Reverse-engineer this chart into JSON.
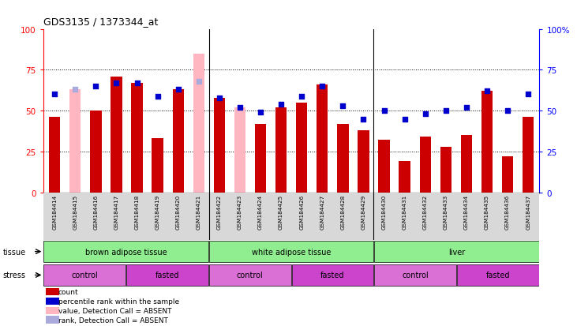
{
  "title": "GDS3135 / 1373344_at",
  "samples": [
    "GSM184414",
    "GSM184415",
    "GSM184416",
    "GSM184417",
    "GSM184418",
    "GSM184419",
    "GSM184420",
    "GSM184421",
    "GSM184422",
    "GSM184423",
    "GSM184424",
    "GSM184425",
    "GSM184426",
    "GSM184427",
    "GSM184428",
    "GSM184429",
    "GSM184430",
    "GSM184431",
    "GSM184432",
    "GSM184433",
    "GSM184434",
    "GSM184435",
    "GSM184436",
    "GSM184437"
  ],
  "count_values": [
    46,
    63,
    50,
    71,
    67,
    33,
    63,
    85,
    58,
    52,
    42,
    52,
    55,
    66,
    42,
    38,
    32,
    19,
    34,
    28,
    35,
    62,
    22,
    46
  ],
  "rank_values": [
    60,
    63,
    65,
    67,
    67,
    59,
    63,
    68,
    58,
    52,
    49,
    54,
    59,
    65,
    53,
    45,
    50,
    45,
    48,
    50,
    52,
    62,
    50,
    60
  ],
  "absent_count": [
    false,
    true,
    false,
    false,
    false,
    false,
    false,
    true,
    false,
    true,
    false,
    false,
    false,
    false,
    false,
    false,
    false,
    false,
    false,
    false,
    false,
    false,
    false,
    false
  ],
  "absent_rank": [
    false,
    true,
    false,
    false,
    false,
    false,
    false,
    true,
    false,
    false,
    false,
    false,
    false,
    false,
    false,
    false,
    false,
    false,
    false,
    false,
    false,
    false,
    false,
    false
  ],
  "tissue_groups": [
    {
      "label": "brown adipose tissue",
      "start": 0,
      "end": 8,
      "color": "#90ee90"
    },
    {
      "label": "white adipose tissue",
      "start": 8,
      "end": 16,
      "color": "#90ee90"
    },
    {
      "label": "liver",
      "start": 16,
      "end": 24,
      "color": "#90ee90"
    }
  ],
  "stress_groups": [
    {
      "label": "control",
      "start": 0,
      "end": 4,
      "color": "#da70d6"
    },
    {
      "label": "fasted",
      "start": 4,
      "end": 8,
      "color": "#cc44cc"
    },
    {
      "label": "control",
      "start": 8,
      "end": 12,
      "color": "#da70d6"
    },
    {
      "label": "fasted",
      "start": 12,
      "end": 16,
      "color": "#cc44cc"
    },
    {
      "label": "control",
      "start": 16,
      "end": 20,
      "color": "#da70d6"
    },
    {
      "label": "fasted",
      "start": 20,
      "end": 24,
      "color": "#cc44cc"
    }
  ],
  "ylim": [
    0,
    100
  ],
  "yticks": [
    0,
    25,
    50,
    75,
    100
  ],
  "bar_color": "#cc0000",
  "absent_bar_color": "#ffb6c1",
  "rank_color": "#0000cc",
  "absent_rank_color": "#aaaadd",
  "bg_color": "#d8d8d8",
  "plot_bg": "#ffffff"
}
